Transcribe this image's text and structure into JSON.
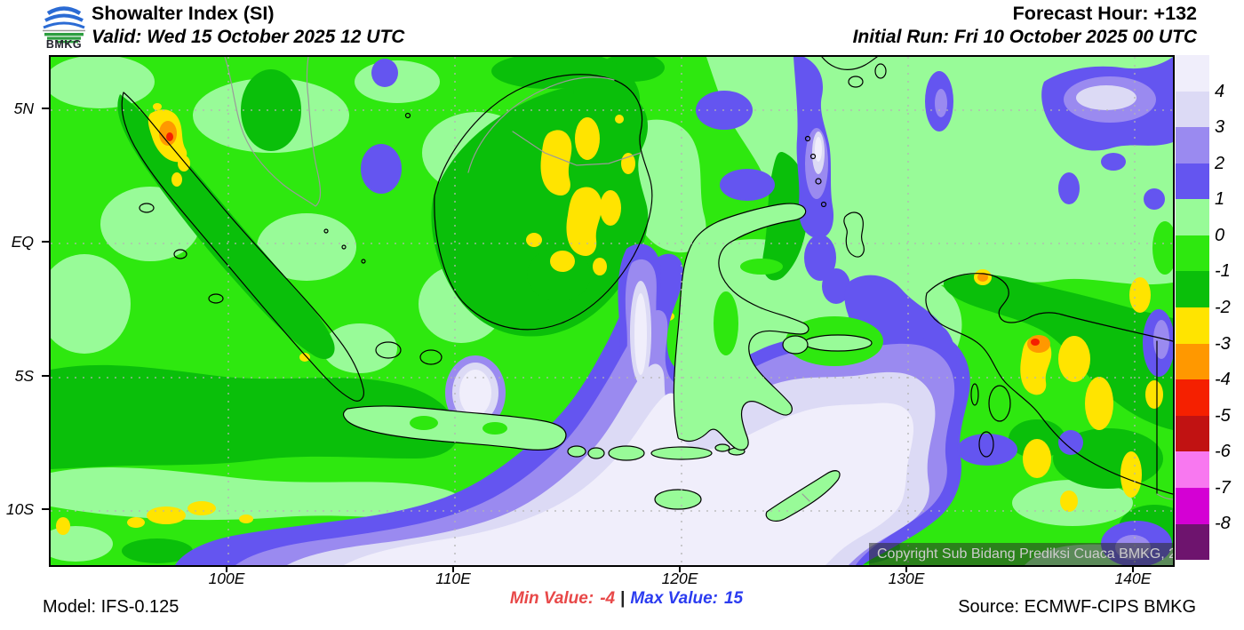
{
  "header": {
    "logo_text": "BMKG",
    "title": "Showalter Index (SI)",
    "valid": "Valid: Wed 15 October 2025 12 UTC",
    "forecast_hour": "Forecast Hour: +132",
    "initial_run": "Initial Run: Fri 10 October 2025 00 UTC"
  },
  "map": {
    "lat_ticks": [
      "5N",
      "EQ",
      "5S",
      "10S"
    ],
    "lon_ticks": [
      "100E",
      "110E",
      "120E",
      "130E",
      "140E"
    ],
    "copyright": "Copyright Sub Bidang Prediksi Cuaca BMKG, 2025"
  },
  "colorbar": {
    "labels": [
      "4",
      "3",
      "2",
      "1",
      "0",
      "-1",
      "-2",
      "-3",
      "-4",
      "-5",
      "-6",
      "-7",
      "-8"
    ],
    "colors": [
      "#f0eefb",
      "#dcdaf5",
      "#9a8af0",
      "#6455f0",
      "#98fb98",
      "#2ee80f",
      "#0abf0a",
      "#ffe400",
      "#ff9800",
      "#f52000",
      "#c11212",
      "#f878f0",
      "#d400d4",
      "#6e146e"
    ]
  },
  "footer": {
    "model": "Model: IFS-0.125",
    "min_label": "Min Value:",
    "min_value": "-4",
    "separator": "|",
    "max_label": "Max Value:",
    "max_value": "15",
    "source": "Source: ECMWF-CIPS BMKG",
    "min_color": "#e84848",
    "max_color": "#2b3cf0"
  }
}
